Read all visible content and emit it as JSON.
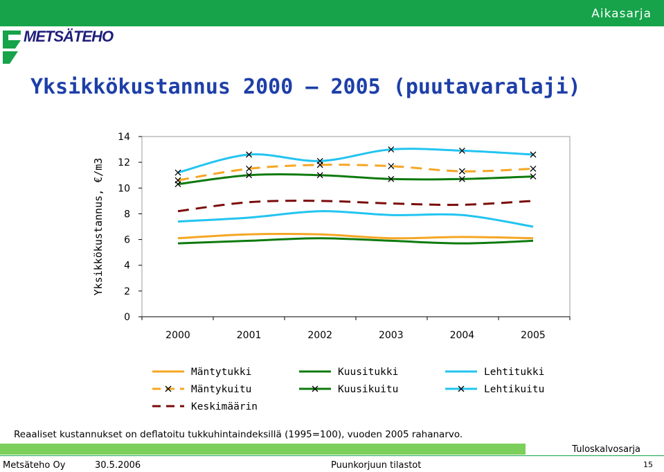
{
  "header": {
    "section_label": "Aikasarja",
    "logo_text": "METSÄTEHO"
  },
  "title": "Yksikkökustannus 2000 – 2005 (puutavaralaji)",
  "chart_data": {
    "type": "line",
    "title": "Yksikkökustannus 2000 – 2005 (puutavaralaji)",
    "ylabel": "Yksikkökustannus, €/m3",
    "xlabel": "",
    "ylim": [
      0,
      14
    ],
    "yticks": [
      0,
      2,
      4,
      6,
      8,
      10,
      12,
      14
    ],
    "x": [
      "2000",
      "2001",
      "2002",
      "2003",
      "2004",
      "2005"
    ],
    "series": [
      {
        "name": "Mäntytukki",
        "style": "solid",
        "color": "#F5A623",
        "marker": "none",
        "values": [
          6.1,
          6.4,
          6.4,
          6.1,
          6.2,
          6.1
        ]
      },
      {
        "name": "Kuusitukki",
        "style": "solid",
        "color": "#0D7A0D",
        "marker": "none",
        "values": [
          5.7,
          5.9,
          6.1,
          5.9,
          5.7,
          5.9
        ]
      },
      {
        "name": "Lehtitukki",
        "style": "solid",
        "color": "#22C4F0",
        "marker": "none",
        "values": [
          7.4,
          7.7,
          8.2,
          7.9,
          7.9,
          7.0
        ]
      },
      {
        "name": "Mäntykuitu",
        "style": "dashed",
        "color": "#F5A623",
        "marker": "x",
        "values": [
          10.6,
          11.5,
          11.8,
          11.7,
          11.3,
          11.5
        ]
      },
      {
        "name": "Kuusikuitu",
        "style": "solid",
        "color": "#0D7A0D",
        "marker": "x",
        "values": [
          10.3,
          11.0,
          11.0,
          10.7,
          10.7,
          10.9
        ]
      },
      {
        "name": "Lehtikuitu",
        "style": "solid",
        "color": "#22C4F0",
        "marker": "x",
        "values": [
          11.2,
          12.6,
          12.1,
          13.0,
          12.9,
          12.6
        ]
      },
      {
        "name": "Keskimäärin",
        "style": "dashed",
        "color": "#7A0A0A",
        "marker": "none",
        "values": [
          8.2,
          8.9,
          9.0,
          8.8,
          8.7,
          9.0
        ]
      }
    ],
    "legend_position": "bottom"
  },
  "legend": [
    {
      "label": "Mäntytukki",
      "series": 0
    },
    {
      "label": "Kuusitukki",
      "series": 1
    },
    {
      "label": "Lehtitukki",
      "series": 2
    },
    {
      "label": "Mäntykuitu",
      "series": 3
    },
    {
      "label": "Kuusikuitu",
      "series": 4
    },
    {
      "label": "Lehtikuitu",
      "series": 5
    },
    {
      "label": "Keskimäärin",
      "series": 6
    }
  ],
  "footnote": "Reaaliset kustannukset on deflatoitu tukkuhintaindeksillä (1995=100), vuoden 2005 rahanarvo.",
  "footer": {
    "section": "Tuloskalvosarja",
    "org": "Metsäteho Oy",
    "date": "30.5.2006",
    "source": "Puunkorjuun tilastot",
    "page": "15"
  }
}
